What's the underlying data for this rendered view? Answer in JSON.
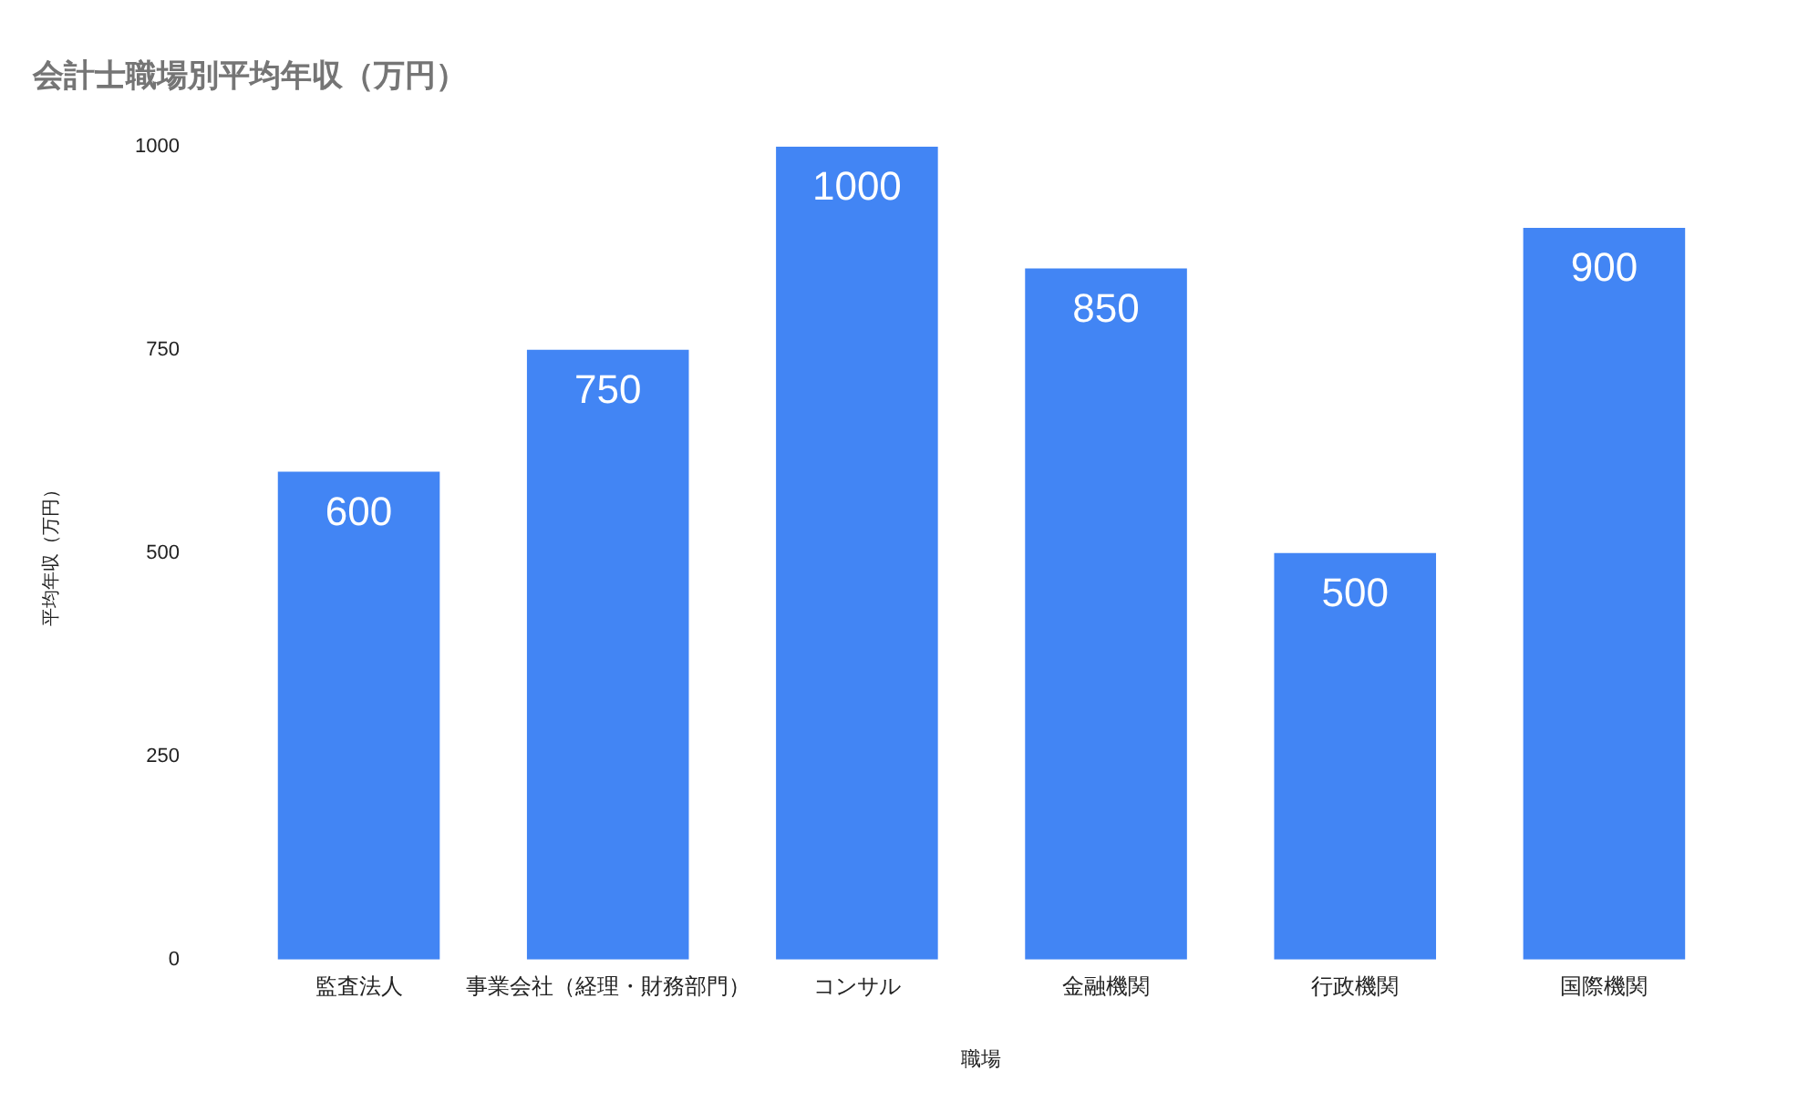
{
  "chart_data": {
    "type": "bar",
    "title": "会計士職場別平均年収（万円）",
    "xlabel": "職場",
    "ylabel": "平均年収（万円）",
    "categories": [
      "監査法人",
      "事業会社（経理・財務部門）",
      "コンサル",
      "金融機関",
      "行政機関",
      "国際機関"
    ],
    "values": [
      600,
      750,
      1000,
      850,
      500,
      900
    ],
    "color": "#4285f4",
    "ylim": [
      0,
      1000
    ],
    "yticks": [
      0,
      250,
      500,
      750,
      1000
    ],
    "grid": false,
    "legend": false,
    "data_labels": true
  }
}
